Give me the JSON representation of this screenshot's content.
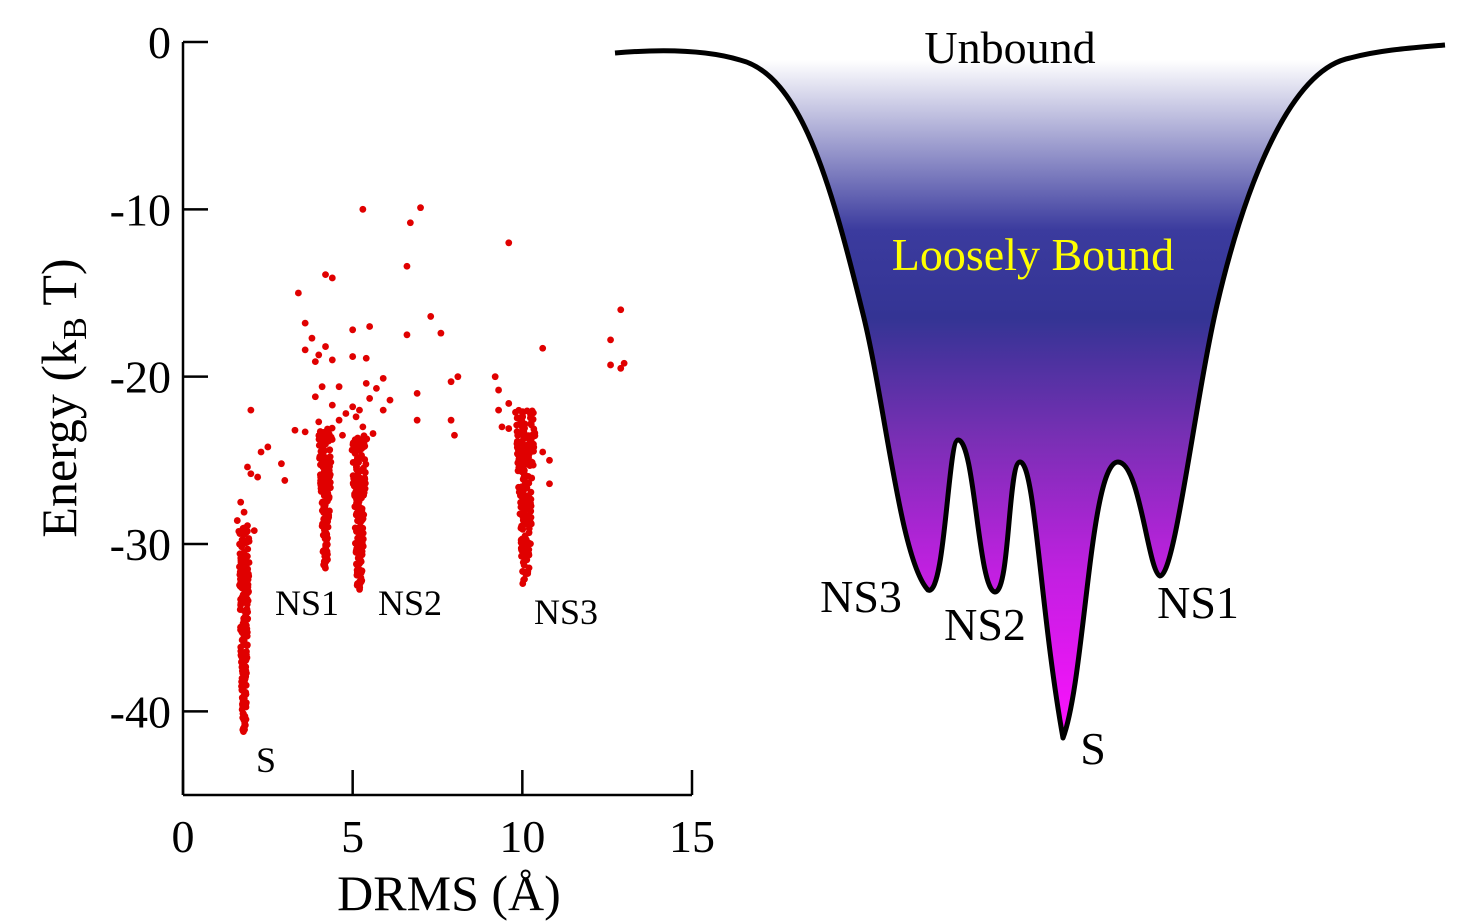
{
  "chart_data": [
    {
      "type": "scatter",
      "xlabel": "DRMS (Å)",
      "ylabel_main": "Energy (k",
      "ylabel_sub": "B",
      "ylabel_tail": " T)",
      "xlim": [
        0,
        15
      ],
      "ylim": [
        -45,
        0
      ],
      "xticks": [
        "0",
        "5",
        "10",
        "15"
      ],
      "xtick_values": [
        0,
        5,
        10,
        15
      ],
      "yticks": [
        "0",
        "-10",
        "-20",
        "-30",
        "-40"
      ],
      "ytick_values": [
        0,
        -10,
        -20,
        -30,
        -40
      ],
      "grid": false,
      "marker_color": "#e00000",
      "clusters": [
        {
          "label": "S",
          "x": 1.8,
          "x_spread": 0.12,
          "ymin": -41.5,
          "ymax": -29.0,
          "count": 240
        },
        {
          "label": "NS1",
          "x": 4.2,
          "x_spread": 0.15,
          "ymin": -31.5,
          "ymax": -23.0,
          "count": 170
        },
        {
          "label": "NS2",
          "x": 5.2,
          "x_spread": 0.17,
          "ymin": -32.8,
          "ymax": -23.5,
          "count": 190
        },
        {
          "label": "NS3",
          "x": 10.1,
          "x_spread": 0.22,
          "ymin": -32.5,
          "ymax": -22.0,
          "count": 210
        }
      ],
      "scattered_points": [
        [
          5.3,
          -10.0
        ],
        [
          7.0,
          -9.9
        ],
        [
          6.7,
          -10.8
        ],
        [
          9.6,
          -12.0
        ],
        [
          6.6,
          -13.4
        ],
        [
          4.2,
          -13.9
        ],
        [
          4.4,
          -14.1
        ],
        [
          3.4,
          -15.0
        ],
        [
          12.9,
          -16.0
        ],
        [
          3.6,
          -16.8
        ],
        [
          7.3,
          -16.4
        ],
        [
          5.0,
          -17.2
        ],
        [
          5.5,
          -17.0
        ],
        [
          7.6,
          -17.4
        ],
        [
          3.8,
          -17.7
        ],
        [
          6.6,
          -17.5
        ],
        [
          12.6,
          -17.8
        ],
        [
          3.6,
          -18.4
        ],
        [
          4.0,
          -18.7
        ],
        [
          4.2,
          -18.2
        ],
        [
          10.6,
          -18.3
        ],
        [
          3.9,
          -19.1
        ],
        [
          4.4,
          -19.0
        ],
        [
          5.0,
          -18.8
        ],
        [
          5.4,
          -18.9
        ],
        [
          12.6,
          -19.3
        ],
        [
          12.9,
          -19.5
        ],
        [
          13.0,
          -19.2
        ],
        [
          9.2,
          -20.0
        ],
        [
          8.1,
          -20.0
        ],
        [
          5.9,
          -20.1
        ],
        [
          5.4,
          -20.4
        ],
        [
          4.1,
          -20.6
        ],
        [
          3.9,
          -21.2
        ],
        [
          7.9,
          -20.3
        ],
        [
          4.6,
          -20.6
        ],
        [
          9.3,
          -20.8
        ],
        [
          5.7,
          -20.7
        ],
        [
          5.5,
          -21.3
        ],
        [
          6.1,
          -21.4
        ],
        [
          4.4,
          -21.7
        ],
        [
          5.0,
          -21.8
        ],
        [
          5.2,
          -22.0
        ],
        [
          4.8,
          -22.2
        ],
        [
          9.3,
          -22.0
        ],
        [
          9.6,
          -21.6
        ],
        [
          6.9,
          -21.0
        ],
        [
          5.9,
          -22.0
        ],
        [
          4.6,
          -22.6
        ],
        [
          2.0,
          -22.0
        ],
        [
          4.0,
          -22.7
        ],
        [
          5.1,
          -22.4
        ],
        [
          5.3,
          -23.0
        ],
        [
          6.9,
          -22.6
        ],
        [
          7.9,
          -22.6
        ],
        [
          3.3,
          -23.2
        ],
        [
          3.6,
          -23.3
        ],
        [
          4.7,
          -23.5
        ],
        [
          5.6,
          -23.4
        ],
        [
          8.0,
          -23.5
        ],
        [
          9.4,
          -23.0
        ],
        [
          9.6,
          -23.1
        ],
        [
          2.5,
          -24.2
        ],
        [
          2.3,
          -24.5
        ],
        [
          1.9,
          -25.4
        ],
        [
          2.0,
          -25.8
        ],
        [
          2.2,
          -26.0
        ],
        [
          2.9,
          -25.2
        ],
        [
          3.0,
          -26.2
        ],
        [
          1.7,
          -27.5
        ],
        [
          1.8,
          -28.1
        ],
        [
          1.6,
          -28.6
        ],
        [
          1.9,
          -28.9
        ],
        [
          2.1,
          -29.2
        ],
        [
          10.6,
          -24.5
        ],
        [
          10.8,
          -25.0
        ],
        [
          10.8,
          -26.4
        ]
      ]
    },
    {
      "type": "diagram",
      "labels": {
        "top": "Unbound",
        "middle": "Loosely Bound",
        "minima": [
          "NS3",
          "NS2",
          "S",
          "NS1"
        ]
      },
      "colors": {
        "middle_label": "#ffff00",
        "gradient": [
          "#ffffff",
          "#3b3b9e",
          "#343494",
          "#7a2fb5",
          "#c020e0",
          "#ff10ff"
        ],
        "curve": "#000000"
      }
    }
  ]
}
